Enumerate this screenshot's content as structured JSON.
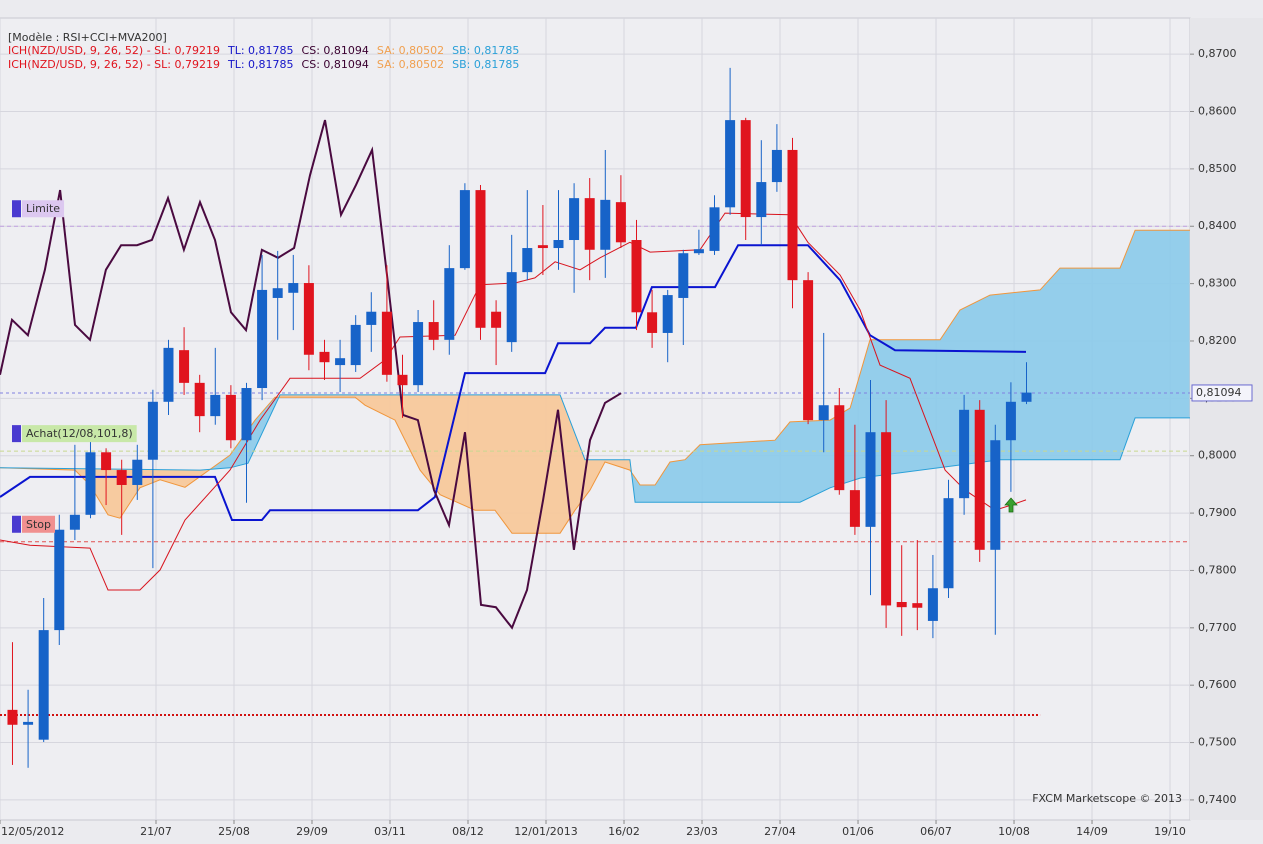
{
  "chart_data": {
    "type": "candlestick",
    "title": "[Modèle : RSI+CCI+MVA200]",
    "indicator_legend": [
      {
        "text": "ICH(NZD/USD, 9, 26, 52) - ",
        "color": "#e0141e"
      },
      {
        "text": "SL: 0,79219",
        "color": "#e0141e"
      },
      {
        "text": "TL: 0,81785",
        "color": "#1414c8"
      },
      {
        "text": "CS: 0,81094",
        "color": "#3a0030"
      },
      {
        "text": "SA: 0,80502",
        "color": "#f0a050"
      },
      {
        "text": "SB: 0,81785",
        "color": "#2aa0d8"
      }
    ],
    "up_color": "#1763c8",
    "down_color": "#e0141e",
    "x": [
      0.8,
      1.8,
      2.8,
      3.8,
      4.8,
      5.8,
      6.8,
      7.8,
      8.8,
      9.8,
      10.8,
      11.8,
      12.8,
      13.8,
      14.8,
      15.8,
      16.8,
      17.8,
      18.8,
      19.8,
      20.8,
      21.8,
      22.8,
      23.8,
      24.8,
      25.8,
      26.8,
      27.8,
      28.8,
      29.8,
      30.8,
      31.8,
      32.8,
      33.8,
      34.8,
      35.8,
      36.8,
      37.8,
      38.8,
      39.8,
      40.8,
      41.8,
      42.8,
      43.8,
      44.8,
      45.8,
      46.8,
      47.8,
      48.8,
      49.8,
      50.8,
      51.8,
      52.8,
      53.8,
      54.8,
      55.8,
      56.8,
      57.8,
      58.8,
      59.8,
      60.8,
      61.8,
      62.8,
      63.8,
      64.8,
      65.8
    ],
    "open": [
      0.7557,
      0.7531,
      0.7505,
      0.7696,
      0.7871,
      0.7897,
      0.8006,
      0.7975,
      0.7949,
      0.7993,
      0.8094,
      0.8184,
      0.8127,
      0.8069,
      0.8106,
      0.8027,
      0.8118,
      0.8275,
      0.8284,
      0.8301,
      0.8181,
      0.8158,
      0.8158,
      0.8228,
      0.8251,
      0.8141,
      0.8123,
      0.8233,
      0.8202,
      0.8327,
      0.8463,
      0.8251,
      0.8198,
      0.832,
      0.8367,
      0.8362,
      0.8376,
      0.8449,
      0.8359,
      0.8442,
      0.8376,
      0.825,
      0.8214,
      0.8275,
      0.8353,
      0.8357,
      0.8433,
      0.8585,
      0.8416,
      0.8477,
      0.8533,
      0.8306,
      0.8062,
      0.8088,
      0.794,
      0.7876,
      0.8041,
      0.7745,
      0.7743,
      0.7712,
      0.7769,
      0.7926,
      0.808,
      0.7836,
      0.8027,
      0.8094
    ],
    "high": [
      0.7675,
      0.7592,
      0.7752,
      0.7897,
      0.8019,
      0.8027,
      0.8013,
      0.7993,
      0.8019,
      0.8115,
      0.8202,
      0.8224,
      0.8141,
      0.8188,
      0.8123,
      0.8127,
      0.835,
      0.8357,
      0.835,
      0.8332,
      0.8202,
      0.8202,
      0.8245,
      0.8285,
      0.8332,
      0.8176,
      0.8254,
      0.8271,
      0.8367,
      0.8475,
      0.8472,
      0.8271,
      0.8385,
      0.8463,
      0.8437,
      0.8463,
      0.8475,
      0.8484,
      0.8533,
      0.8489,
      0.8411,
      0.8289,
      0.8289,
      0.8359,
      0.8394,
      0.8454,
      0.8676,
      0.8589,
      0.855,
      0.8578,
      0.8554,
      0.832,
      0.8214,
      0.8118,
      0.8054,
      0.8132,
      0.8097,
      0.7844,
      0.7853,
      0.7827,
      0.7958,
      0.8106,
      0.8097,
      0.8054,
      0.8128,
      0.8163
    ],
    "low": [
      0.7461,
      0.7456,
      0.7501,
      0.767,
      0.7853,
      0.7891,
      0.7914,
      0.7862,
      0.7923,
      0.7804,
      0.8071,
      0.8106,
      0.8041,
      0.8054,
      0.8013,
      0.7918,
      0.8097,
      0.8202,
      0.8219,
      0.8149,
      0.8132,
      0.8111,
      0.8146,
      0.8181,
      0.8129,
      0.8066,
      0.8111,
      0.8184,
      0.8176,
      0.8324,
      0.8202,
      0.8158,
      0.8181,
      0.8306,
      0.8315,
      0.8324,
      0.8284,
      0.8306,
      0.831,
      0.8362,
      0.8219,
      0.8188,
      0.8163,
      0.8193,
      0.835,
      0.835,
      0.842,
      0.8376,
      0.8367,
      0.846,
      0.8257,
      0.8055,
      0.8006,
      0.7932,
      0.7862,
      0.7757,
      0.77,
      0.7686,
      0.7696,
      0.7682,
      0.7752,
      0.7897,
      0.7815,
      0.7688,
      0.7937,
      0.809
    ],
    "close": [
      0.7531,
      0.7536,
      0.7696,
      0.7871,
      0.7897,
      0.8006,
      0.7975,
      0.7949,
      0.7993,
      0.8094,
      0.8188,
      0.8127,
      0.8069,
      0.8106,
      0.8027,
      0.8118,
      0.8289,
      0.8292,
      0.8301,
      0.8176,
      0.8163,
      0.817,
      0.8228,
      0.8251,
      0.8141,
      0.8123,
      0.8233,
      0.8202,
      0.8327,
      0.8463,
      0.8223,
      0.8223,
      0.832,
      0.8362,
      0.8362,
      0.8376,
      0.8449,
      0.8359,
      0.8446,
      0.8372,
      0.825,
      0.8214,
      0.828,
      0.8353,
      0.836,
      0.8433,
      0.8585,
      0.8416,
      0.8477,
      0.8533,
      0.8306,
      0.8062,
      0.8088,
      0.794,
      0.7876,
      0.8041,
      0.7739,
      0.7736,
      0.7735,
      0.7769,
      0.7926,
      0.808,
      0.7836,
      0.8027,
      0.8094,
      0.811
    ],
    "lines": [
      {
        "color": "#0a14d0",
        "width": 2,
        "x": [
          0,
          1.92,
          13.78,
          14.87,
          16.79,
          17.31,
          26.79,
          27.88,
          29.81,
          34.94,
          35.77,
          37.82,
          38.78,
          40.77,
          41.79,
          45.83,
          47.31,
          51.79,
          53.85,
          55.77,
          57.37,
          65.77
        ],
        "values": [
          0.7928,
          0.7963,
          0.7963,
          0.7888,
          0.7888,
          0.7905,
          0.7905,
          0.7928,
          0.8144,
          0.8144,
          0.8196,
          0.8196,
          0.8223,
          0.8223,
          0.8294,
          0.8294,
          0.8367,
          0.8367,
          0.8306,
          0.821,
          0.8184,
          0.8181
        ]
      },
      {
        "color": "#d8141e",
        "width": 1,
        "x": [
          0,
          1.92,
          5.77,
          6.92,
          8.97,
          10.26,
          11.86,
          14.74,
          16.67,
          18.59,
          23.08,
          24.68,
          25.64,
          29.17,
          30.77,
          33.01,
          34.29,
          35.58,
          37.18,
          38.46,
          40.38,
          41.67,
          44.87,
          46.47,
          50.64,
          51.79,
          53.85,
          55.13,
          56.41,
          58.33,
          60.58,
          61.86,
          63.78,
          64.81,
          65.77
        ],
        "values": [
          0.7853,
          0.7844,
          0.7839,
          0.7766,
          0.7766,
          0.7801,
          0.7888,
          0.7975,
          0.8062,
          0.8135,
          0.8135,
          0.8167,
          0.8207,
          0.821,
          0.8298,
          0.8301,
          0.831,
          0.8338,
          0.8324,
          0.8345,
          0.8372,
          0.8355,
          0.8359,
          0.8423,
          0.842,
          0.8372,
          0.8315,
          0.8254,
          0.8158,
          0.8135,
          0.7975,
          0.794,
          0.7905,
          0.7914,
          0.7923
        ]
      },
      {
        "color": "#4a0a40",
        "width": 2,
        "x": [
          0,
          0.77,
          1.79,
          2.88,
          3.85,
          4.81,
          5.77,
          6.79,
          7.76,
          8.78,
          9.74,
          10.77,
          11.79,
          12.82,
          13.78,
          14.81,
          15.77,
          16.79,
          17.82,
          18.85,
          19.87,
          20.83,
          21.86,
          22.82,
          23.85,
          24.81,
          25.83,
          26.79,
          27.82,
          28.78,
          29.81,
          30.83,
          31.79,
          32.82,
          33.78,
          34.81,
          35.77,
          36.79,
          37.82,
          38.78,
          39.81
        ],
        "values": [
          0.8141,
          0.8237,
          0.821,
          0.8324,
          0.8463,
          0.8228,
          0.8202,
          0.8324,
          0.8367,
          0.8367,
          0.8376,
          0.8449,
          0.8359,
          0.8442,
          0.8376,
          0.825,
          0.8219,
          0.8359,
          0.8345,
          0.8362,
          0.8489,
          0.8585,
          0.842,
          0.8472,
          0.8533,
          0.8315,
          0.8071,
          0.8062,
          0.794,
          0.7879,
          0.8041,
          0.774,
          0.7736,
          0.77,
          0.7766,
          0.7923,
          0.808,
          0.7836,
          0.8027,
          0.8092,
          0.8109
        ]
      }
    ],
    "cloud": {
      "fill_up": "#8ecbea",
      "fill_down": "#f7c89b",
      "span_a": {
        "color": "#f0963c",
        "x": [
          0,
          4.81,
          5.77,
          6.92,
          7.69,
          8.97,
          10.26,
          11.86,
          14.74,
          16.35,
          17.63,
          22.76,
          23.4,
          25.32,
          26.92,
          28.21,
          30.45,
          31.73,
          32.82,
          35.9,
          36.86,
          37.82,
          38.78,
          40.38,
          41.03,
          41.99,
          42.95,
          43.91,
          44.87,
          49.68,
          50.64,
          53.21,
          54.49,
          55.77,
          60.26,
          61.54,
          63.46,
          66.67,
          67.95,
          71.79,
          72.76,
          76.28
        ],
        "values": [
          0.7979,
          0.7975,
          0.7949,
          0.7897,
          0.7891,
          0.7944,
          0.7958,
          0.7945,
          0.8001,
          0.8062,
          0.8102,
          0.8102,
          0.8088,
          0.8062,
          0.7975,
          0.7932,
          0.7905,
          0.7905,
          0.7865,
          0.7865,
          0.7905,
          0.794,
          0.7989,
          0.7975,
          0.7949,
          0.7949,
          0.7989,
          0.7993,
          0.8019,
          0.8027,
          0.8059,
          0.8062,
          0.8083,
          0.8202,
          0.8202,
          0.8254,
          0.828,
          0.8289,
          0.8327,
          0.8327,
          0.8393,
          0.8393
        ]
      },
      "span_b": {
        "color": "#2aa0d8",
        "x": [
          0,
          12.82,
          14.74,
          15.9,
          17.95,
          35.9,
          37.5,
          40.38,
          40.71,
          51.28,
          53.21,
          55.13,
          64.1,
          71.79,
          72.76,
          76.28
        ],
        "values": [
          0.7979,
          0.7975,
          0.7979,
          0.7987,
          0.8106,
          0.8106,
          0.7993,
          0.7993,
          0.7919,
          0.7919,
          0.7944,
          0.7961,
          0.7993,
          0.7993,
          0.8066,
          0.8066
        ]
      }
    },
    "levels": [
      {
        "label": "Limite",
        "value": 0.84,
        "color": "#c0a0e0",
        "box": "#dcc8f0",
        "text_color": "#9a6ac8"
      },
      {
        "label": "Achat(12/08,101,8)",
        "value": 0.8008,
        "color": "#c8d890",
        "box": "#c8e8a8",
        "text_color": "#5a7a3a"
      },
      {
        "label": "Stop",
        "value": 0.785,
        "color": "#e05050",
        "box": "#f09090",
        "text_color": "#a02020"
      }
    ],
    "price": {
      "label": "0,81094",
      "value": 0.81094,
      "color": "#8080e0"
    },
    "dotted_line": {
      "value": 0.7548,
      "x": [
        0,
        66.67
      ],
      "color": "#d01010"
    },
    "footer": "FXCM Marketscope © 2013",
    "grid": true,
    "xlim": [
      0,
      76.28
    ],
    "ylim": [
      0.7365,
      0.8763
    ],
    "xticks": [
      {
        "value": 0,
        "label": "12/05/2012"
      },
      {
        "value": 10,
        "label": "21/07"
      },
      {
        "value": 15,
        "label": "25/08"
      },
      {
        "value": 20,
        "label": "29/09"
      },
      {
        "value": 25,
        "label": "03/11"
      },
      {
        "value": 30,
        "label": "08/12"
      },
      {
        "value": 35,
        "label": "12/01/2013"
      },
      {
        "value": 40,
        "label": "16/02"
      },
      {
        "value": 45,
        "label": "23/03"
      },
      {
        "value": 50,
        "label": "27/04"
      },
      {
        "value": 55,
        "label": "01/06"
      },
      {
        "value": 60,
        "label": "06/07"
      },
      {
        "value": 65,
        "label": "10/08"
      },
      {
        "value": 70,
        "label": "14/09"
      },
      {
        "value": 75,
        "label": "19/10"
      }
    ],
    "yticks": [
      {
        "value": 0.74,
        "label": "0,7400"
      },
      {
        "value": 0.75,
        "label": "0,7500"
      },
      {
        "value": 0.76,
        "label": "0,7600"
      },
      {
        "value": 0.77,
        "label": "0,7700"
      },
      {
        "value": 0.78,
        "label": "0,7800"
      },
      {
        "value": 0.79,
        "label": "0,7900"
      },
      {
        "value": 0.8,
        "label": "0,8000"
      },
      {
        "value": 0.81,
        "label": "0,8100"
      },
      {
        "value": 0.82,
        "label": "0,8200"
      },
      {
        "value": 0.83,
        "label": "0,8300"
      },
      {
        "value": 0.84,
        "label": "0,8400"
      },
      {
        "value": 0.85,
        "label": "0,8500"
      },
      {
        "value": 0.86,
        "label": "0,8600"
      },
      {
        "value": 0.87,
        "label": "0,8700"
      }
    ]
  }
}
